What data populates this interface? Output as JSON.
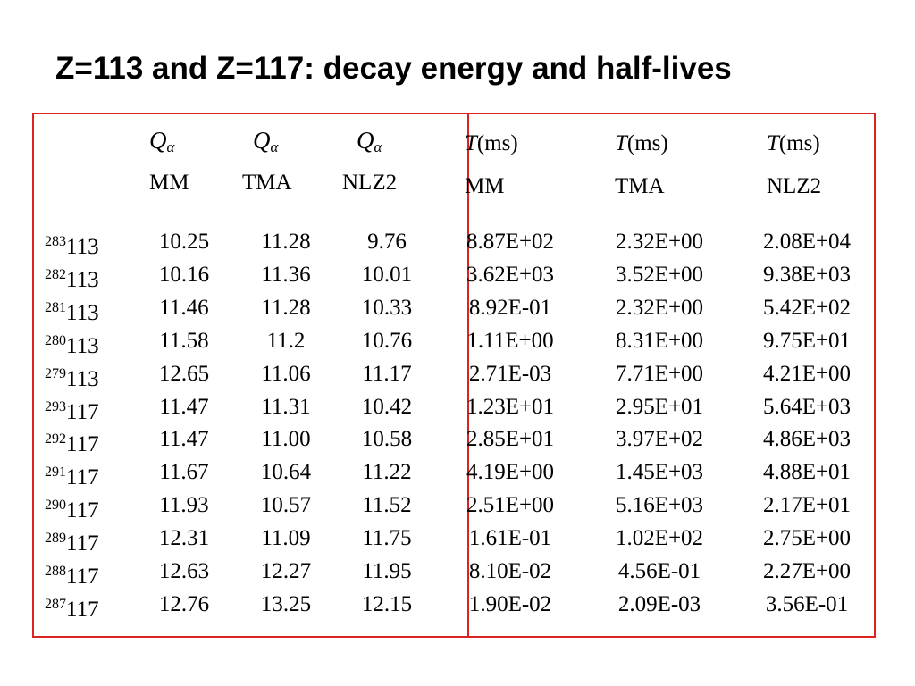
{
  "title": "Z=113 and Z=117:  decay energy and half-lives",
  "headers": {
    "q_symbol": "Q",
    "q_subscript": "α",
    "t_symbol": "T",
    "t_unit": "(ms)",
    "models": [
      "MM",
      "TMA",
      "NLZ2"
    ]
  },
  "rows": [
    {
      "mass": "283",
      "z": "113",
      "q": [
        "10.25",
        "11.28",
        "9.76"
      ],
      "t": [
        "8.87E+02",
        "2.32E+00",
        "2.08E+04"
      ]
    },
    {
      "mass": "282",
      "z": "113",
      "q": [
        "10.16",
        "11.36",
        "10.01"
      ],
      "t": [
        "3.62E+03",
        "3.52E+00",
        "9.38E+03"
      ]
    },
    {
      "mass": "281",
      "z": "113",
      "q": [
        "11.46",
        "11.28",
        "10.33"
      ],
      "t": [
        "8.92E-01",
        "2.32E+00",
        "5.42E+02"
      ]
    },
    {
      "mass": "280",
      "z": "113",
      "q": [
        "11.58",
        "11.2",
        "10.76"
      ],
      "t": [
        "1.11E+00",
        "8.31E+00",
        "9.75E+01"
      ]
    },
    {
      "mass": "279",
      "z": "113",
      "q": [
        "12.65",
        "11.06",
        "11.17"
      ],
      "t": [
        "2.71E-03",
        "7.71E+00",
        "4.21E+00"
      ]
    },
    {
      "mass": "293",
      "z": "117",
      "q": [
        "11.47",
        "11.31",
        "10.42"
      ],
      "t": [
        "1.23E+01",
        "2.95E+01",
        "5.64E+03"
      ]
    },
    {
      "mass": "292",
      "z": "117",
      "q": [
        "11.47",
        "11.00",
        "10.58"
      ],
      "t": [
        "2.85E+01",
        "3.97E+02",
        "4.86E+03"
      ]
    },
    {
      "mass": "291",
      "z": "117",
      "q": [
        "11.67",
        "10.64",
        "11.22"
      ],
      "t": [
        "4.19E+00",
        "1.45E+03",
        "4.88E+01"
      ]
    },
    {
      "mass": "290",
      "z": "117",
      "q": [
        "11.93",
        "10.57",
        "11.52"
      ],
      "t": [
        "2.51E+00",
        "5.16E+03",
        "2.17E+01"
      ]
    },
    {
      "mass": "289",
      "z": "117",
      "q": [
        "12.31",
        "11.09",
        "11.75"
      ],
      "t": [
        "1.61E-01",
        "1.02E+02",
        "2.75E+00"
      ]
    },
    {
      "mass": "288",
      "z": "117",
      "q": [
        "12.63",
        "12.27",
        "11.95"
      ],
      "t": [
        "8.10E-02",
        "4.56E-01",
        "2.27E+00"
      ]
    },
    {
      "mass": "287",
      "z": "117",
      "q": [
        "12.76",
        "13.25",
        "12.15"
      ],
      "t": [
        "1.90E-02",
        "2.09E-03",
        "3.56E-01"
      ]
    }
  ],
  "colors": {
    "frame": "#dd2222",
    "text": "#000000",
    "background": "#ffffff"
  }
}
